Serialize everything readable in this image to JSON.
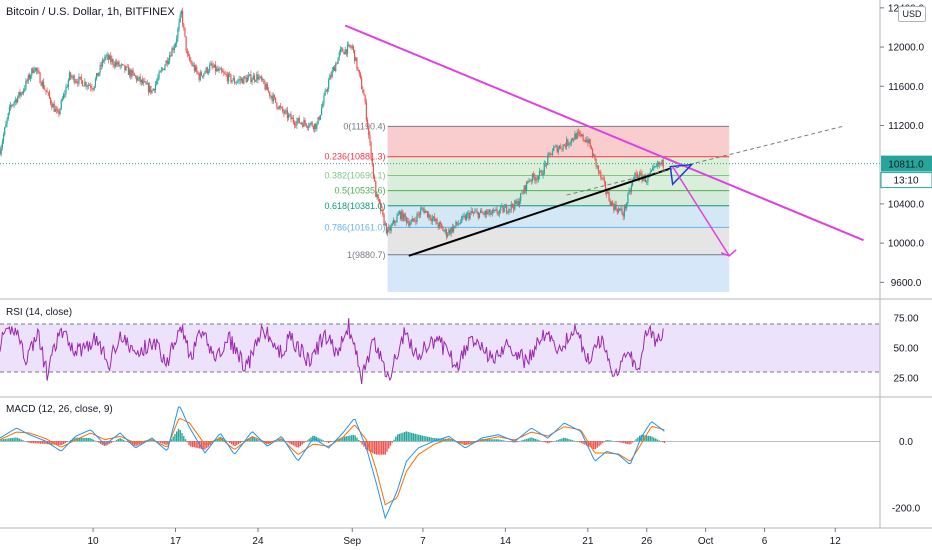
{
  "header": {
    "title": "Bitcoin / U.S. Dollar, 1h, BITFINEX",
    "currency": "USD"
  },
  "price_badges": {
    "last_price": "10811.0",
    "countdown": "13:10",
    "price_color": "#26a69a",
    "countdown_color": "#26a69a"
  },
  "panels": {
    "rsi_label": "RSI (14, close)",
    "macd_label": "MACD (12, 26, close, 9)"
  },
  "chart_data": [
    {
      "type": "candlestick",
      "title": "Bitcoin / U.S. Dollar, 1h, BITFINEX",
      "y_ticks": [
        9600,
        10000,
        10400,
        10811,
        11200,
        11600,
        12000,
        12400
      ],
      "y_tick_labels": [
        "9600.0",
        "10000.0",
        "10400.0",
        "11200.0",
        "11600.0",
        "12000.0",
        "12400.0"
      ],
      "ylim": [
        9440,
        12480
      ],
      "x_tick_labels": [
        "10",
        "17",
        "24",
        "Sep",
        "7",
        "14",
        "21",
        "26",
        "Oct",
        "6",
        "12"
      ],
      "x_tick_days": [
        10,
        17,
        24,
        32,
        38,
        45,
        52,
        57,
        62,
        67,
        73
      ],
      "xlim_days": [
        2.1,
        76.8
      ],
      "last_day": 58.5,
      "price_path_days": [
        2.1,
        3,
        4,
        5,
        7,
        8,
        10,
        11,
        13,
        15,
        17,
        17.5,
        18,
        19,
        20,
        22,
        24,
        26,
        27,
        29,
        30,
        31,
        32,
        33,
        34,
        35,
        36,
        37,
        38,
        40,
        42,
        44,
        46,
        47,
        48,
        49,
        50,
        51,
        52,
        53,
        54,
        55,
        56,
        57,
        58,
        58.5
      ],
      "price_path_values": [
        10950,
        11400,
        11550,
        11800,
        11300,
        11700,
        11600,
        11900,
        11750,
        11550,
        12050,
        12350,
        11900,
        11700,
        11800,
        11650,
        11700,
        11350,
        11250,
        11200,
        11650,
        11950,
        12000,
        11500,
        10500,
        10100,
        10300,
        10200,
        10350,
        10100,
        10300,
        10300,
        10400,
        10650,
        10700,
        10950,
        11000,
        11100,
        11050,
        10700,
        10400,
        10300,
        10700,
        10650,
        10800,
        10811
      ],
      "fib_levels": [
        {
          "ratio": "0",
          "value": 11190.4,
          "label": "0(11190.4)",
          "color": "#787b86"
        },
        {
          "ratio": "0.236",
          "value": 10881.3,
          "label": "0.236(10881.3)",
          "color": "#f23645"
        },
        {
          "ratio": "0.382",
          "value": 10690.1,
          "label": "0.382(10690.1)",
          "color": "#81c784"
        },
        {
          "ratio": "0.5",
          "value": 10535.6,
          "label": "0.5(10535.6)",
          "color": "#4caf50"
        },
        {
          "ratio": "0.618",
          "value": 10381.0,
          "label": "0.618(10381.0)",
          "color": "#089981"
        },
        {
          "ratio": "0.786",
          "value": 10161.0,
          "label": "0.786(10161.0)",
          "color": "#64b5f6"
        },
        {
          "ratio": "1",
          "value": 9880.7,
          "label": "1(9880.7)",
          "color": "#787b86"
        }
      ],
      "fib_extension_bottom": 9500,
      "fib_zone_colors": [
        "#f8c4c4",
        "#d7ecd2",
        "#d2ebd5",
        "#cfe6d6",
        "#cde3f2",
        "#e0e0e0",
        "#cfe3f8"
      ],
      "fib_start_day": 35,
      "fib_end_day": 64,
      "trendlines": [
        {
          "name": "resistance",
          "color": "#e040e0",
          "from": [
            31.4,
            12220
          ],
          "to": [
            75.4,
            10030
          ]
        },
        {
          "name": "support",
          "color": "#000000",
          "from": [
            36.8,
            9870
          ],
          "to": [
            59.0,
            10760
          ]
        },
        {
          "name": "dashed-extension",
          "color": "#787b86",
          "from": [
            50.2,
            10490
          ],
          "to": [
            73.6,
            11190
          ]
        }
      ],
      "arrow": {
        "color": "#e040e0",
        "from": [
          59.2,
          10780
        ],
        "to": [
          64.0,
          9870
        ]
      }
    },
    {
      "type": "line",
      "name": "RSI",
      "y_ticks": [
        25,
        50,
        75
      ],
      "y_tick_labels": [
        "25.00",
        "50.00",
        "75.00"
      ],
      "ylim": [
        10,
        90
      ],
      "band": [
        30,
        70
      ],
      "band_color": "#ece2fb",
      "line_color": "#9c27b0",
      "x_days": [
        2.1,
        3.4,
        4.3,
        5.3,
        6.1,
        7.2,
        8.6,
        10.3,
        11.3,
        12.2,
        13.7,
        15.1,
        16.3,
        17.4,
        18.3,
        19.1,
        20.5,
        21.6,
        23.0,
        24.5,
        25.8,
        26.8,
        28.4,
        29.6,
        30.8,
        31.7,
        32.8,
        33.8,
        35.1,
        36.4,
        37.5,
        39.2,
        40.9,
        42.4,
        43.8,
        45.3,
        46.8,
        48.4,
        49.5,
        50.9,
        52.1,
        53.1,
        54.3,
        55.2,
        56.3,
        57.0,
        57.8,
        58.5
      ],
      "values": [
        54,
        68,
        41,
        62,
        28,
        64,
        47,
        58,
        35,
        61,
        44,
        56,
        38,
        72,
        40,
        63,
        42,
        57,
        33,
        66,
        45,
        59,
        37,
        61,
        46,
        68,
        26,
        55,
        25,
        62,
        44,
        57,
        36,
        60,
        41,
        53,
        38,
        64,
        48,
        66,
        40,
        57,
        27,
        49,
        33,
        66,
        55,
        62
      ]
    },
    {
      "type": "line",
      "name": "MACD",
      "y_ticks": [
        -200,
        0
      ],
      "y_tick_labels": [
        "-200.0",
        "0.0"
      ],
      "ylim": [
        -260,
        130
      ],
      "macd_color": "#2196f3",
      "signal_color": "#ff6d00",
      "hist_up_color": "#26a69a",
      "hist_down_color": "#ef5350",
      "x_days": [
        2.1,
        3.5,
        4.6,
        6.0,
        7.3,
        8.5,
        9.8,
        11.0,
        12.3,
        13.6,
        15.0,
        16.3,
        17.3,
        18.2,
        19.5,
        20.8,
        22.0,
        23.5,
        24.8,
        26.0,
        27.4,
        28.7,
        30.0,
        31.2,
        32.2,
        33.2,
        34.0,
        34.8,
        35.8,
        36.6,
        37.6,
        38.9,
        40.2,
        41.6,
        43.0,
        44.4,
        45.8,
        47.2,
        48.6,
        50.0,
        51.4,
        52.6,
        53.6,
        54.6,
        55.6,
        56.5,
        57.4,
        58.5
      ],
      "macd": [
        10,
        40,
        20,
        0,
        -30,
        15,
        35,
        -10,
        25,
        -20,
        10,
        -30,
        110,
        40,
        -35,
        25,
        -40,
        30,
        -15,
        15,
        -60,
        10,
        -20,
        25,
        70,
        -20,
        -120,
        -230,
        -150,
        -60,
        -20,
        0,
        15,
        -20,
        10,
        20,
        0,
        40,
        10,
        55,
        30,
        -60,
        -30,
        -40,
        -70,
        10,
        60,
        30
      ],
      "signal": [
        5,
        28,
        25,
        8,
        -18,
        4,
        25,
        5,
        15,
        -5,
        5,
        -18,
        70,
        55,
        -10,
        10,
        -25,
        15,
        -5,
        8,
        -40,
        -8,
        -15,
        12,
        50,
        5,
        -80,
        -190,
        -170,
        -90,
        -40,
        -10,
        8,
        -10,
        3,
        14,
        4,
        28,
        16,
        44,
        34,
        -35,
        -35,
        -38,
        -60,
        -10,
        45,
        35
      ]
    }
  ]
}
